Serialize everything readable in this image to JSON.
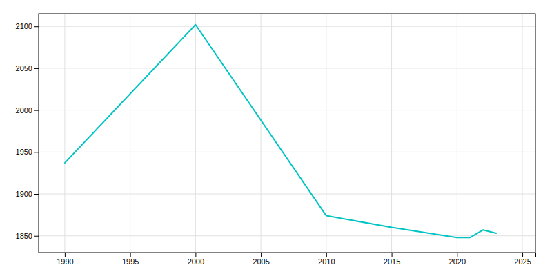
{
  "chart_data": {
    "type": "line",
    "x": [
      1990,
      2000,
      2010,
      2015,
      2020,
      2021,
      2022,
      2023
    ],
    "values": [
      1937,
      2102,
      1874,
      1860,
      1848,
      1848,
      1857,
      1853
    ],
    "color": "#00C4C4",
    "xlim": [
      1988,
      2026
    ],
    "ylim": [
      1830,
      2115
    ],
    "xticks": [
      1990,
      1995,
      2000,
      2005,
      2010,
      2015,
      2020,
      2025
    ],
    "yticks": [
      1850,
      1900,
      1950,
      2000,
      2050,
      2100
    ],
    "grid": true
  }
}
